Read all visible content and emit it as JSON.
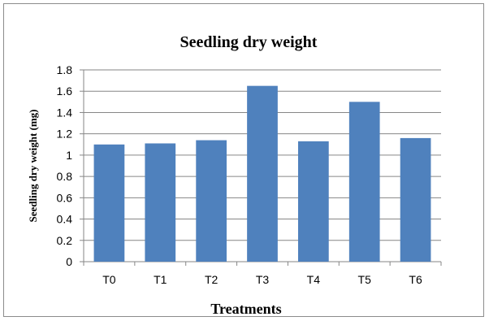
{
  "chart_data": {
    "type": "bar",
    "title": "Seedling dry weight",
    "xlabel": "Treatments",
    "ylabel": "Seedling dry weight (mg)",
    "categories": [
      "T0",
      "T1",
      "T2",
      "T3",
      "T4",
      "T5",
      "T6"
    ],
    "values": [
      1.1,
      1.11,
      1.14,
      1.65,
      1.13,
      1.5,
      1.16
    ],
    "ylim": [
      0,
      1.8
    ],
    "yticks": [
      "0",
      "0.2",
      "0.4",
      "0.6",
      "0.8",
      "1",
      "1.2",
      "1.4",
      "1.6",
      "1.8"
    ],
    "grid": true,
    "legend": "none",
    "bar_color": "#4f81bd",
    "grid_color": "#868686"
  }
}
